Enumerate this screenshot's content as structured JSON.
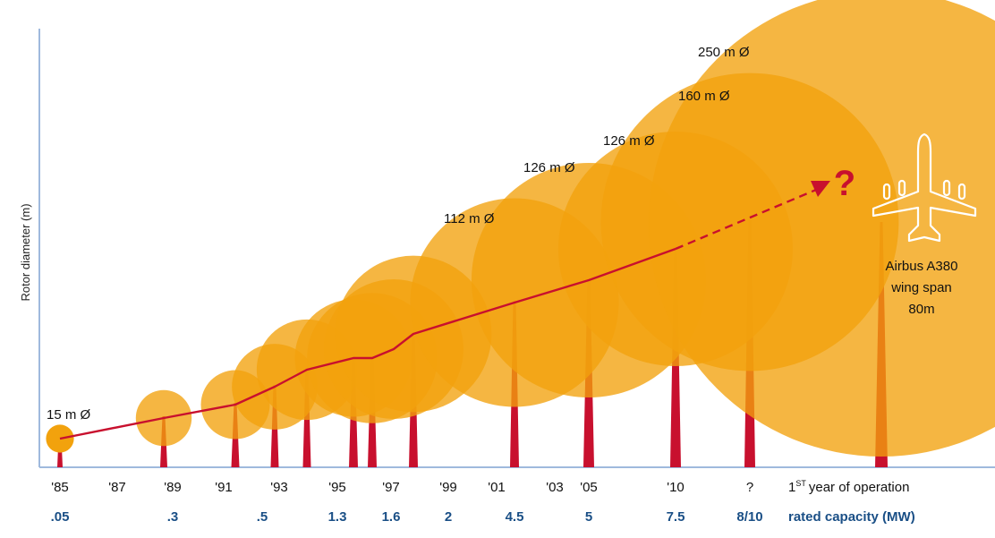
{
  "chart_data": {
    "type": "bubble",
    "ylabel": "Rotor diameter (m)",
    "x_axis_caption": "year of operation",
    "x_axis_caption_prefix": "1",
    "x_axis_caption_superscript": "ST",
    "capacity_caption": "rated capacity (MW)",
    "year_ticks": [
      "'85",
      "'87",
      "'89",
      "'91",
      "'93",
      "'95",
      "'97",
      "'99",
      "'01",
      "'03",
      "'05",
      "'10",
      "?"
    ],
    "capacity_ticks": [
      ".05",
      ".3",
      ".5",
      "1.3",
      "1.6",
      "2",
      "4.5",
      "5",
      "7.5",
      "8/10"
    ],
    "turbines": [
      {
        "year": 1985,
        "rotor_diameter_m": 15
      },
      {
        "year": 1989,
        "rotor_diameter_m": 30
      },
      {
        "year": 1991,
        "rotor_diameter_m": 37
      },
      {
        "year": 1993,
        "rotor_diameter_m": 46
      },
      {
        "year": 1994,
        "rotor_diameter_m": 54
      },
      {
        "year": 1995,
        "rotor_diameter_m": 63
      },
      {
        "year": 1996,
        "rotor_diameter_m": 70
      },
      {
        "year": 1997,
        "rotor_diameter_m": 75
      },
      {
        "year": 1998,
        "rotor_diameter_m": 84
      },
      {
        "year": 2001,
        "rotor_diameter_m": 112
      },
      {
        "year": 2005,
        "rotor_diameter_m": 126
      },
      {
        "year": 2010,
        "rotor_diameter_m": 126
      },
      {
        "year": "?",
        "rotor_diameter_m": 160
      },
      {
        "year": "?",
        "rotor_diameter_m": 250
      }
    ],
    "diameter_labels": [
      "15 m Ø",
      "112 m Ø",
      "126 m Ø",
      "126 m Ø",
      "160 m Ø",
      "250 m Ø"
    ],
    "trend_end_marker": "?",
    "comparison": {
      "line1": "Airbus A380",
      "line2": "wing span",
      "line3": "80m"
    },
    "colors": {
      "bubble": "#f2a20d",
      "trend": "#c8102e",
      "tower": "#c8102e",
      "capacity_text": "#1a4f86",
      "axis": "#9fb9dd"
    }
  }
}
